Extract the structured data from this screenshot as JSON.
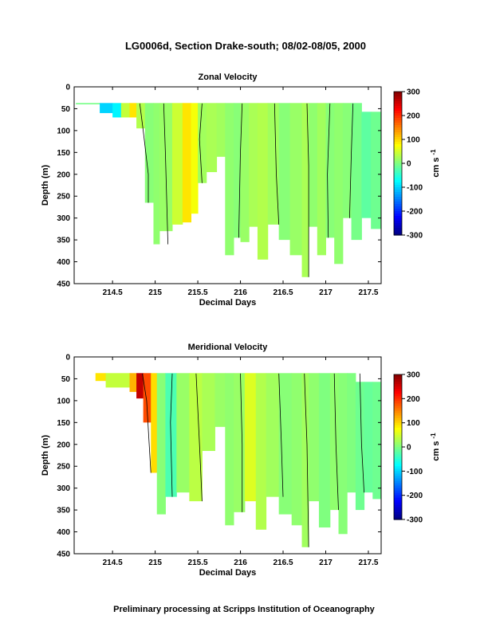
{
  "figure": {
    "title": "LG0006d, Section Drake-south; 08/02-08/05, 2000",
    "footer": "Preliminary processing at Scripps Institution of Oceanography"
  },
  "colorbar": {
    "ticks": [
      "300",
      "200",
      "100",
      "0",
      "-100",
      "-200",
      "-300"
    ],
    "label": "cm s",
    "label_exponent": "-1",
    "range": [
      -300,
      300
    ],
    "colormap": [
      "#00007f",
      "#0000ff",
      "#007fff",
      "#00ffff",
      "#7fff7f",
      "#ffff00",
      "#ff7f00",
      "#ff0000",
      "#7f0000"
    ]
  },
  "chart_data": [
    {
      "type": "heatmap",
      "title": "Zonal Velocity",
      "xlabel": "Decimal Days",
      "ylabel": "Depth (m)",
      "xlim": [
        214.05,
        217.65
      ],
      "ylim": [
        450,
        0
      ],
      "x_ticks": [
        214.5,
        215,
        215.5,
        216,
        216.5,
        217,
        217.5
      ],
      "x_tick_labels": [
        "214.5",
        "215",
        "215.5",
        "216",
        "216.5",
        "217",
        "217.5"
      ],
      "y_ticks": [
        0,
        50,
        100,
        150,
        200,
        250,
        300,
        350,
        400,
        450
      ],
      "y_tick_labels": [
        "0",
        "50",
        "100",
        "150",
        "200",
        "250",
        "300",
        "350",
        "400",
        "450"
      ],
      "data_top_depth": 37,
      "columns": [
        {
          "x": [
            214.07,
            214.35
          ],
          "bottom": 40,
          "v": -5
        },
        {
          "x": [
            214.35,
            214.5
          ],
          "bottom": 60,
          "v": -100
        },
        {
          "x": [
            214.5,
            214.6
          ],
          "bottom": 70,
          "v": -80
        },
        {
          "x": [
            214.6,
            214.7
          ],
          "bottom": 70,
          "v": 40
        },
        {
          "x": [
            214.7,
            214.78
          ],
          "bottom": 70,
          "v": 90
        },
        {
          "x": [
            214.78,
            214.88
          ],
          "bottom": 95,
          "v": 30
        },
        {
          "x": [
            214.88,
            214.98
          ],
          "bottom": 265,
          "v": 5
        },
        {
          "x": [
            214.98,
            215.05
          ],
          "bottom": 360,
          "v": 10
        },
        {
          "x": [
            215.05,
            215.2
          ],
          "bottom": 330,
          "v": 15
        },
        {
          "x": [
            215.2,
            215.32
          ],
          "bottom": 315,
          "v": 45
        },
        {
          "x": [
            215.32,
            215.42
          ],
          "bottom": 310,
          "v": 90
        },
        {
          "x": [
            215.42,
            215.5
          ],
          "bottom": 290,
          "v": 70
        },
        {
          "x": [
            215.5,
            215.6
          ],
          "bottom": 220,
          "v": 20
        },
        {
          "x": [
            215.6,
            215.72
          ],
          "bottom": 195,
          "v": 25
        },
        {
          "x": [
            215.72,
            215.82
          ],
          "bottom": 160,
          "v": 20
        },
        {
          "x": [
            215.82,
            215.92
          ],
          "bottom": 385,
          "v": 10
        },
        {
          "x": [
            215.92,
            216.0
          ],
          "bottom": 345,
          "v": 5
        },
        {
          "x": [
            216.0,
            216.1
          ],
          "bottom": 355,
          "v": 15
        },
        {
          "x": [
            216.1,
            216.2
          ],
          "bottom": 320,
          "v": 25
        },
        {
          "x": [
            216.2,
            216.32
          ],
          "bottom": 395,
          "v": 30
        },
        {
          "x": [
            216.32,
            216.45
          ],
          "bottom": 315,
          "v": 20
        },
        {
          "x": [
            216.45,
            216.58
          ],
          "bottom": 350,
          "v": 5
        },
        {
          "x": [
            216.58,
            216.72
          ],
          "bottom": 385,
          "v": 15
        },
        {
          "x": [
            216.72,
            216.8
          ],
          "bottom": 435,
          "v": 25
        },
        {
          "x": [
            216.8,
            216.9
          ],
          "bottom": 320,
          "v": 10
        },
        {
          "x": [
            216.9,
            217.0
          ],
          "bottom": 385,
          "v": 20
        },
        {
          "x": [
            217.0,
            217.1
          ],
          "bottom": 345,
          "v": 5
        },
        {
          "x": [
            217.1,
            217.2
          ],
          "bottom": 405,
          "v": 10
        },
        {
          "x": [
            217.2,
            217.3
          ],
          "bottom": 300,
          "v": 5
        },
        {
          "x": [
            217.3,
            217.42
          ],
          "bottom": 350,
          "v": -5
        },
        {
          "x": [
            217.42,
            217.53
          ],
          "bottom": 300,
          "v": -20
        },
        {
          "x": [
            217.53,
            217.65
          ],
          "bottom": 325,
          "v": -10
        }
      ],
      "right_top_depth": 57,
      "right_top_x": 217.33,
      "contours": [
        [
          [
            214.82,
            38
          ],
          [
            214.86,
            100
          ],
          [
            214.92,
            200
          ],
          [
            214.92,
            265
          ]
        ],
        [
          [
            215.1,
            38
          ],
          [
            215.12,
            150
          ],
          [
            215.15,
            360
          ]
        ],
        [
          [
            215.55,
            38
          ],
          [
            215.52,
            120
          ],
          [
            215.55,
            220
          ]
        ],
        [
          [
            216.02,
            38
          ],
          [
            216.0,
            150
          ],
          [
            215.98,
            345
          ]
        ],
        [
          [
            216.4,
            38
          ],
          [
            216.42,
            200
          ],
          [
            216.45,
            315
          ]
        ],
        [
          [
            216.78,
            38
          ],
          [
            216.8,
            180
          ],
          [
            216.8,
            435
          ]
        ],
        [
          [
            217.05,
            38
          ],
          [
            217.02,
            200
          ],
          [
            217.03,
            345
          ]
        ],
        [
          [
            217.32,
            38
          ],
          [
            217.3,
            150
          ],
          [
            217.28,
            300
          ]
        ]
      ]
    },
    {
      "type": "heatmap",
      "title": "Meridional Velocity",
      "xlabel": "Decimal Days",
      "ylabel": "Depth (m)",
      "xlim": [
        214.05,
        217.65
      ],
      "ylim": [
        450,
        0
      ],
      "x_ticks": [
        214.5,
        215,
        215.5,
        216,
        216.5,
        217,
        217.5
      ],
      "x_tick_labels": [
        "214.5",
        "215",
        "215.5",
        "216",
        "216.5",
        "217",
        "217.5"
      ],
      "y_ticks": [
        0,
        50,
        100,
        150,
        200,
        250,
        300,
        350,
        400,
        450
      ],
      "y_tick_labels": [
        "0",
        "50",
        "100",
        "150",
        "200",
        "250",
        "300",
        "350",
        "400",
        "450"
      ],
      "data_top_depth": 37,
      "columns": [
        {
          "x": [
            214.3,
            214.42
          ],
          "bottom": 55,
          "v": 90
        },
        {
          "x": [
            214.42,
            214.7
          ],
          "bottom": 70,
          "v": 40
        },
        {
          "x": [
            214.7,
            214.78
          ],
          "bottom": 80,
          "v": 120
        },
        {
          "x": [
            214.78,
            214.86
          ],
          "bottom": 95,
          "v": 260
        },
        {
          "x": [
            214.86,
            214.95
          ],
          "bottom": 150,
          "v": 180
        },
        {
          "x": [
            214.95,
            215.02
          ],
          "bottom": 265,
          "v": 95
        },
        {
          "x": [
            215.02,
            215.12
          ],
          "bottom": 360,
          "v": 5
        },
        {
          "x": [
            215.12,
            215.25
          ],
          "bottom": 320,
          "v": -30
        },
        {
          "x": [
            215.25,
            215.4
          ],
          "bottom": 310,
          "v": 15
        },
        {
          "x": [
            215.4,
            215.55
          ],
          "bottom": 330,
          "v": 35
        },
        {
          "x": [
            215.55,
            215.7
          ],
          "bottom": 215,
          "v": 25
        },
        {
          "x": [
            215.7,
            215.82
          ],
          "bottom": 160,
          "v": 15
        },
        {
          "x": [
            215.82,
            215.92
          ],
          "bottom": 385,
          "v": 10
        },
        {
          "x": [
            215.92,
            216.05
          ],
          "bottom": 355,
          "v": 15
        },
        {
          "x": [
            216.05,
            216.18
          ],
          "bottom": 330,
          "v": 55
        },
        {
          "x": [
            216.18,
            216.3
          ],
          "bottom": 395,
          "v": 30
        },
        {
          "x": [
            216.3,
            216.45
          ],
          "bottom": 320,
          "v": 20
        },
        {
          "x": [
            216.45,
            216.6
          ],
          "bottom": 360,
          "v": 5
        },
        {
          "x": [
            216.6,
            216.72
          ],
          "bottom": 385,
          "v": 10
        },
        {
          "x": [
            216.72,
            216.8
          ],
          "bottom": 435,
          "v": 20
        },
        {
          "x": [
            216.8,
            216.92
          ],
          "bottom": 330,
          "v": 10
        },
        {
          "x": [
            216.92,
            217.05
          ],
          "bottom": 390,
          "v": 0
        },
        {
          "x": [
            217.05,
            217.15
          ],
          "bottom": 350,
          "v": 10
        },
        {
          "x": [
            217.15,
            217.25
          ],
          "bottom": 405,
          "v": 5
        },
        {
          "x": [
            217.25,
            217.35
          ],
          "bottom": 310,
          "v": 0
        },
        {
          "x": [
            217.35,
            217.45
          ],
          "bottom": 350,
          "v": -10
        },
        {
          "x": [
            217.45,
            217.55
          ],
          "bottom": 310,
          "v": -15
        },
        {
          "x": [
            217.55,
            217.65
          ],
          "bottom": 325,
          "v": -10
        }
      ],
      "right_top_depth": 57,
      "right_top_x": 217.35,
      "contours": [
        [
          [
            214.85,
            38
          ],
          [
            214.9,
            100
          ],
          [
            214.95,
            265
          ]
        ],
        [
          [
            215.2,
            38
          ],
          [
            215.18,
            150
          ],
          [
            215.2,
            320
          ]
        ],
        [
          [
            215.48,
            38
          ],
          [
            215.52,
            200
          ],
          [
            215.55,
            330
          ]
        ],
        [
          [
            216.0,
            38
          ],
          [
            216.02,
            200
          ],
          [
            216.02,
            355
          ]
        ],
        [
          [
            216.45,
            38
          ],
          [
            216.48,
            200
          ],
          [
            216.5,
            320
          ]
        ],
        [
          [
            216.75,
            38
          ],
          [
            216.78,
            200
          ],
          [
            216.8,
            435
          ]
        ],
        [
          [
            217.1,
            38
          ],
          [
            217.12,
            200
          ],
          [
            217.15,
            350
          ]
        ],
        [
          [
            217.4,
            38
          ],
          [
            217.42,
            200
          ],
          [
            217.45,
            310
          ]
        ]
      ]
    }
  ]
}
